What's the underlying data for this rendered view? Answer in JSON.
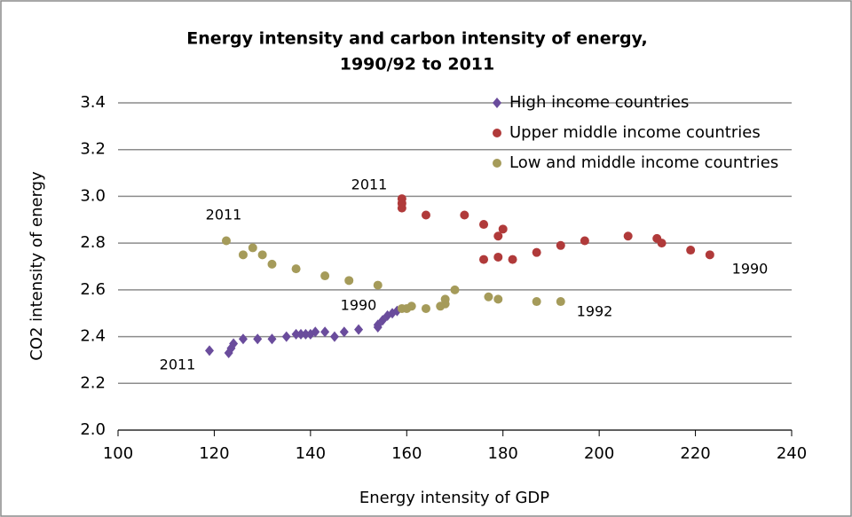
{
  "chart_data": {
    "type": "scatter",
    "title": "Energy intensity and carbon intensity of energy,",
    "subtitle": "1990/92 to 2011",
    "x_label": "Energy intensity of GDP",
    "y_label": "CO2 intensity of energy",
    "xlim": [
      100,
      240
    ],
    "xticks": [
      100,
      120,
      140,
      160,
      180,
      200,
      220,
      240
    ],
    "ylim": [
      2.0,
      3.4
    ],
    "yticks": [
      {
        "value": 2.0,
        "label": "2.0"
      },
      2.2,
      2.4,
      2.6,
      2.8,
      {
        "value": 3.0,
        "label": "3.0"
      },
      3.2,
      3.4
    ],
    "grid": true,
    "legend": "upper right",
    "series": [
      {
        "name": "High income countries",
        "color": "#6a4c9c",
        "marker": "diamond",
        "x": [
          119,
          123,
          123.5,
          124,
          126,
          129,
          132,
          135,
          137,
          138,
          139,
          140,
          141,
          143,
          145,
          147,
          150,
          154,
          154,
          155,
          156,
          157,
          158
        ],
        "values": [
          2.34,
          2.33,
          2.35,
          2.37,
          2.39,
          2.39,
          2.39,
          2.4,
          2.41,
          2.41,
          2.41,
          2.41,
          2.42,
          2.42,
          2.4,
          2.42,
          2.43,
          2.44,
          2.45,
          2.47,
          2.49,
          2.5,
          2.51
        ]
      },
      {
        "name": "Upper middle income countries",
        "color": "#b03a3a",
        "marker": "circle",
        "x": [
          223,
          219,
          213,
          212,
          206,
          197,
          192,
          187,
          182,
          179,
          176,
          179,
          180,
          176,
          172,
          164,
          159,
          159,
          159
        ],
        "values": [
          2.75,
          2.77,
          2.8,
          2.82,
          2.83,
          2.81,
          2.79,
          2.76,
          2.73,
          2.74,
          2.73,
          2.83,
          2.86,
          2.88,
          2.92,
          2.92,
          2.95,
          2.97,
          2.99
        ]
      },
      {
        "name": "Low and middle income countries",
        "color": "#a59b5a",
        "marker": "circle",
        "x": [
          192,
          187,
          179,
          177,
          170,
          168,
          168,
          167,
          164,
          161,
          160,
          159,
          154,
          148,
          143,
          137,
          132,
          130,
          128,
          126,
          122.5
        ],
        "values": [
          2.55,
          2.55,
          2.56,
          2.57,
          2.6,
          2.56,
          2.54,
          2.53,
          2.52,
          2.53,
          2.52,
          2.52,
          2.62,
          2.64,
          2.66,
          2.69,
          2.71,
          2.75,
          2.78,
          2.75,
          2.81
        ]
      }
    ],
    "annotations": [
      "2011",
      "1990",
      "2011",
      "1990",
      "2011",
      "1992"
    ]
  }
}
